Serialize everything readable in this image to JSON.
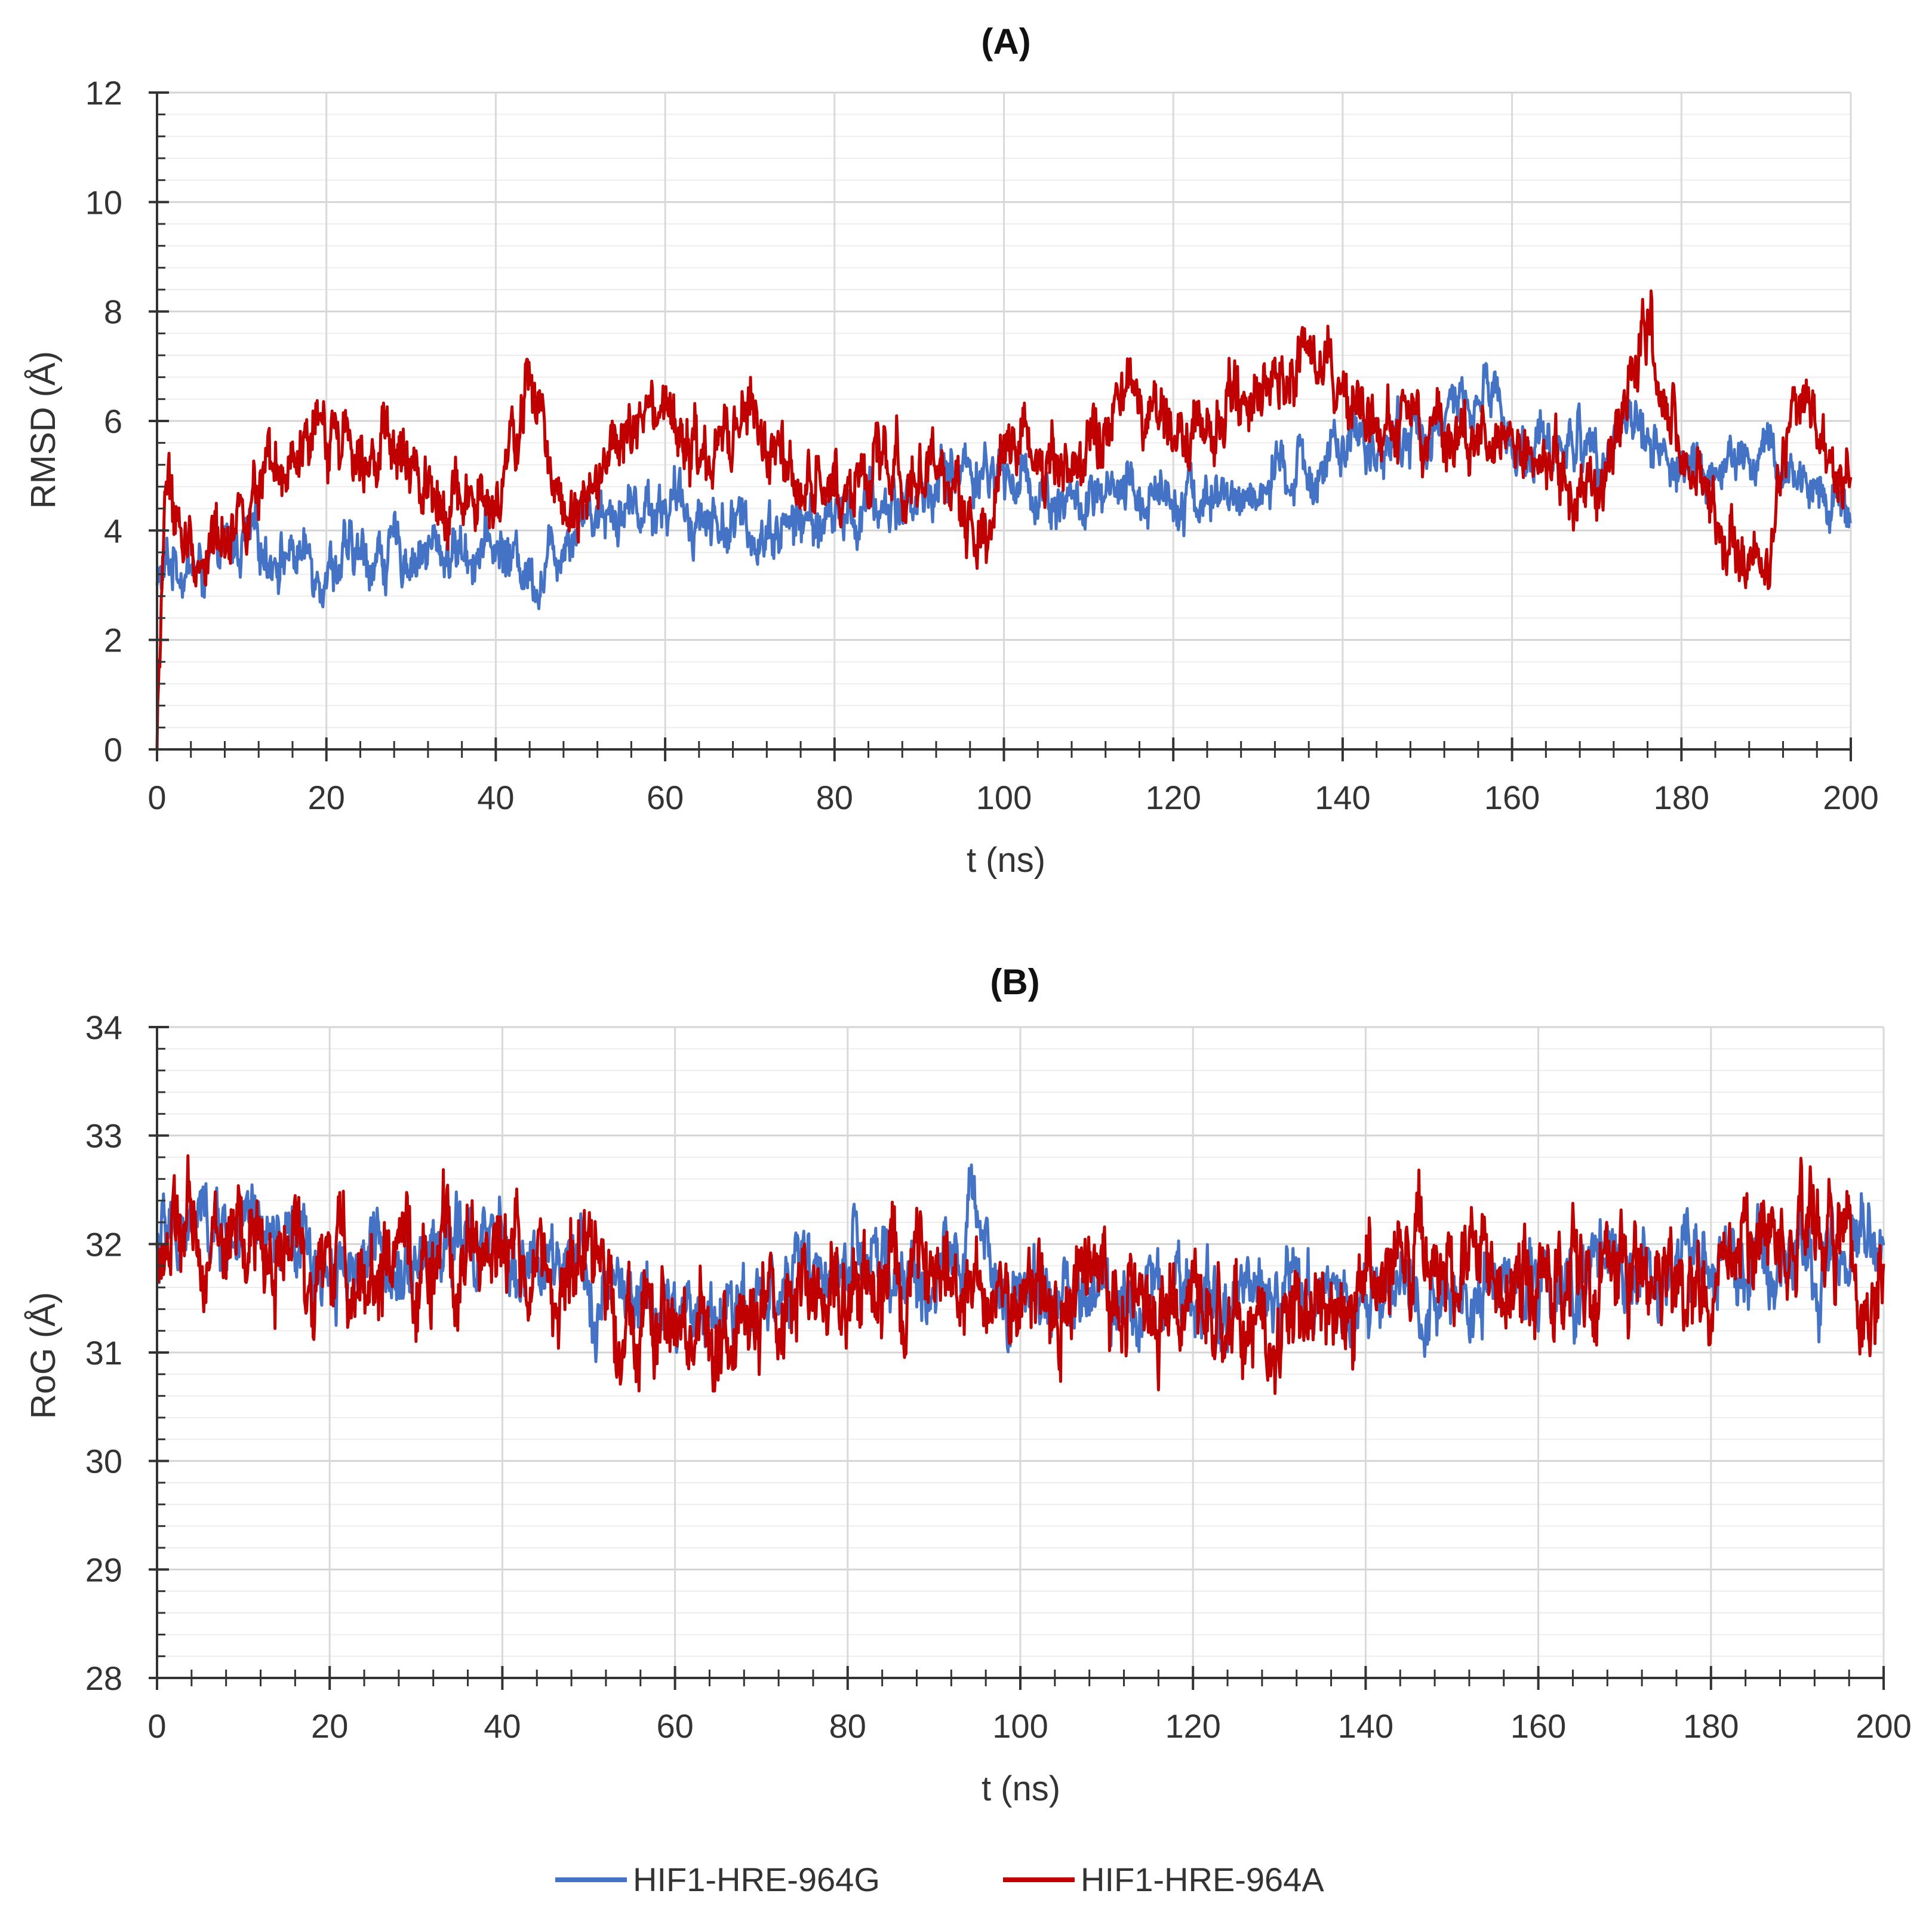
{
  "legend": {
    "g": {
      "label": "HIF1-HRE-964G",
      "color": "#4472c4"
    },
    "a": {
      "label": "HIF1-HRE-964A",
      "color": "#c00000"
    }
  },
  "chart_data": [
    {
      "type": "line",
      "title": "(A)",
      "xlabel": "t (ns)",
      "ylabel": "RMSD (Å)",
      "xlim": [
        0,
        200
      ],
      "ylim": [
        0,
        12
      ],
      "xticks": [
        0,
        20,
        40,
        60,
        80,
        100,
        120,
        140,
        160,
        180,
        200
      ],
      "yticks": [
        0,
        2,
        4,
        6,
        8,
        10,
        12
      ],
      "grid": true,
      "series": [
        {
          "name": "HIF1-HRE-964G",
          "color": "#4472c4",
          "x": [
            0,
            2,
            5,
            10,
            20,
            30,
            40,
            45,
            50,
            60,
            70,
            80,
            90,
            95,
            100,
            110,
            120,
            125,
            130,
            140,
            150,
            158,
            160,
            170,
            175,
            180,
            190,
            200
          ],
          "y": [
            3.0,
            3.5,
            3.2,
            3.8,
            3.4,
            3.6,
            3.7,
            3.2,
            4.4,
            4.5,
            4.0,
            4.2,
            4.6,
            5.2,
            5.0,
            4.4,
            4.8,
            4.5,
            4.7,
            5.4,
            5.8,
            6.6,
            5.5,
            5.6,
            6.0,
            5.0,
            5.3,
            4.4
          ],
          "noise": 0.5
        },
        {
          "name": "HIF1-HRE-964A",
          "color": "#c00000",
          "x": [
            0,
            1,
            3,
            5,
            10,
            15,
            20,
            25,
            30,
            35,
            40,
            44,
            48,
            55,
            60,
            65,
            70,
            75,
            80,
            90,
            98,
            100,
            110,
            115,
            120,
            130,
            137,
            140,
            150,
            160,
            170,
            176,
            180,
            185,
            190,
            193,
            200
          ],
          "y": [
            0.0,
            5.0,
            3.8,
            3.4,
            4.5,
            4.8,
            5.8,
            5.8,
            5.0,
            4.7,
            4.2,
            6.7,
            4.5,
            5.6,
            6.0,
            5.0,
            6.2,
            4.6,
            4.9,
            5.2,
            4.0,
            5.6,
            5.2,
            6.5,
            5.6,
            6.6,
            7.4,
            6.2,
            5.6,
            5.6,
            4.6,
            7.8,
            5.0,
            4.0,
            2.9,
            6.6,
            4.6
          ],
          "noise": 0.6
        }
      ]
    },
    {
      "type": "line",
      "title": "(B)",
      "xlabel": "t (ns)",
      "ylabel": "RoG (Å)",
      "xlim": [
        0,
        200
      ],
      "ylim": [
        28,
        34
      ],
      "xticks": [
        0,
        20,
        40,
        60,
        80,
        100,
        120,
        140,
        160,
        180,
        200
      ],
      "yticks": [
        28,
        29,
        30,
        31,
        32,
        33,
        34
      ],
      "grid": true,
      "series": [
        {
          "name": "HIF1-HRE-964G",
          "color": "#4472c4",
          "x": [
            0,
            5,
            20,
            35,
            40,
            50,
            60,
            80,
            90,
            96,
            97,
            100,
            120,
            140,
            160,
            180,
            200
          ],
          "y": [
            32.0,
            32.2,
            31.8,
            32.0,
            31.9,
            31.6,
            31.3,
            31.8,
            31.6,
            32.3,
            31.8,
            31.5,
            31.6,
            31.6,
            31.6,
            31.8,
            31.9
          ],
          "noise": 0.35
        },
        {
          "name": "HIF1-HRE-964A",
          "color": "#c00000",
          "x": [
            0,
            10,
            20,
            30,
            38,
            45,
            50,
            58,
            70,
            80,
            90,
            100,
            110,
            120,
            128,
            140,
            148,
            160,
            170,
            180,
            191,
            200
          ],
          "y": [
            32.0,
            32.0,
            31.8,
            31.7,
            32.1,
            31.6,
            31.8,
            31.1,
            31.2,
            31.7,
            31.5,
            31.5,
            31.6,
            31.3,
            31.3,
            31.6,
            31.9,
            31.6,
            31.8,
            31.6,
            32.2,
            31.5
          ],
          "noise": 0.45
        }
      ]
    }
  ]
}
